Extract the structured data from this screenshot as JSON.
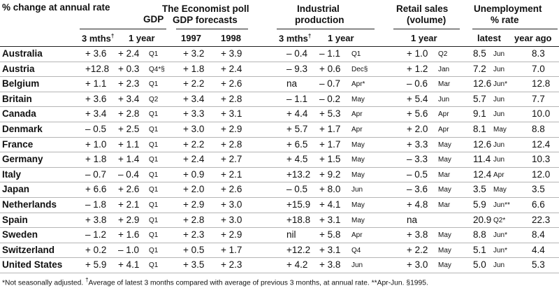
{
  "table_title": "% change at annual rate",
  "groups": {
    "gdp": "GDP",
    "poll_line1": "The Economist poll",
    "poll_line2": "GDP forecasts",
    "ip_line1": "Industrial",
    "ip_line2": "production",
    "retail_line1": "Retail sales",
    "retail_line2": "(volume)",
    "unemp_line1": "Unemployment",
    "unemp_line2": "% rate"
  },
  "subheaders": {
    "gdp_3m": "3 mths",
    "gdp_3m_mark": "†",
    "gdp_1y": "1 year",
    "poll_1997": "1997",
    "poll_1998": "1998",
    "ip_3m": "3 mths",
    "ip_3m_mark": "†",
    "ip_1y": "1 year",
    "retail_1y": "1 year",
    "unemp_latest": "latest",
    "unemp_yearago": "year ago"
  },
  "rows": [
    {
      "country": "Australia",
      "gdp3": "+ 3.6",
      "gdp1": "+ 2.4",
      "gdpd": "Q1",
      "f97": "+ 3.2",
      "f98": "+ 3.9",
      "ip3": "– 0.4",
      "ip1": "– 1.1",
      "ipd": "Q1",
      "rs": "+ 1.0",
      "rsd": "Q2",
      "ul": "8.5",
      "uld": "Jun",
      "uy": "8.3"
    },
    {
      "country": "Austria",
      "gdp3": "+12.8",
      "gdp1": "+ 0.3",
      "gdpd": "Q4*§",
      "f97": "+ 1.8",
      "f98": "+ 2.4",
      "ip3": "– 9.3",
      "ip1": "+ 0.6",
      "ipd": "Dec§",
      "rs": "+ 1.2",
      "rsd": "Jan",
      "ul": "7.2",
      "uld": "Jun",
      "uy": "7.0"
    },
    {
      "country": "Belgium",
      "gdp3": "+ 1.1",
      "gdp1": "+ 2.3",
      "gdpd": "Q1",
      "f97": "+ 2.2",
      "f98": "+ 2.6",
      "ip3": "na",
      "ip1": "– 0.7",
      "ipd": "Apr*",
      "rs": "– 0.6",
      "rsd": "Mar",
      "ul": "12.6",
      "uld": "Jun*",
      "uy": "12.8"
    },
    {
      "country": "Britain",
      "gdp3": "+ 3.6",
      "gdp1": "+ 3.4",
      "gdpd": "Q2",
      "f97": "+ 3.4",
      "f98": "+ 2.8",
      "ip3": "– 1.1",
      "ip1": "– 0.2",
      "ipd": "May",
      "rs": "+ 5.4",
      "rsd": "Jun",
      "ul": "5.7",
      "uld": "Jun",
      "uy": "7.7"
    },
    {
      "country": "Canada",
      "gdp3": "+ 3.4",
      "gdp1": "+ 2.8",
      "gdpd": "Q1",
      "f97": "+ 3.3",
      "f98": "+ 3.1",
      "ip3": "+ 4.4",
      "ip1": "+ 5.3",
      "ipd": "Apr",
      "rs": "+ 5.6",
      "rsd": "Apr",
      "ul": "9.1",
      "uld": "Jun",
      "uy": "10.0"
    },
    {
      "country": "Denmark",
      "gdp3": "– 0.5",
      "gdp1": "+ 2.5",
      "gdpd": "Q1",
      "f97": "+ 3.0",
      "f98": "+ 2.9",
      "ip3": "+ 5.7",
      "ip1": "+ 1.7",
      "ipd": "Apr",
      "rs": "+ 2.0",
      "rsd": "Apr",
      "ul": "8.1",
      "uld": "May",
      "uy": "8.8"
    },
    {
      "country": "France",
      "gdp3": "+ 1.0",
      "gdp1": "+ 1.1",
      "gdpd": "Q1",
      "f97": "+ 2.2",
      "f98": "+ 2.8",
      "ip3": "+ 6.5",
      "ip1": "+ 1.7",
      "ipd": "May",
      "rs": "+ 3.3",
      "rsd": "May",
      "ul": "12.6",
      "uld": "Jun",
      "uy": "12.4"
    },
    {
      "country": "Germany",
      "gdp3": "+ 1.8",
      "gdp1": "+ 1.4",
      "gdpd": "Q1",
      "f97": "+ 2.4",
      "f98": "+ 2.7",
      "ip3": "+ 4.5",
      "ip1": "+ 1.5",
      "ipd": "May",
      "rs": "– 3.3",
      "rsd": "May",
      "ul": "11.4",
      "uld": "Jun",
      "uy": "10.3"
    },
    {
      "country": "Italy",
      "gdp3": "– 0.7",
      "gdp1": "– 0.4",
      "gdpd": "Q1",
      "f97": "+ 0.9",
      "f98": "+ 2.1",
      "ip3": "+13.2",
      "ip1": "+ 9.2",
      "ipd": "May",
      "rs": "– 0.5",
      "rsd": "Mar",
      "ul": "12.4",
      "uld": "Apr",
      "uy": "12.0"
    },
    {
      "country": "Japan",
      "gdp3": "+ 6.6",
      "gdp1": "+ 2.6",
      "gdpd": "Q1",
      "f97": "+ 2.0",
      "f98": "+ 2.6",
      "ip3": "– 0.5",
      "ip1": "+ 8.0",
      "ipd": "Jun",
      "rs": "– 3.6",
      "rsd": "May",
      "ul": "3.5",
      "uld": "May",
      "uy": "3.5"
    },
    {
      "country": "Netherlands",
      "gdp3": "– 1.8",
      "gdp1": "+ 2.1",
      "gdpd": "Q1",
      "f97": "+ 2.9",
      "f98": "+ 3.0",
      "ip3": "+15.9",
      "ip1": "+ 4.1",
      "ipd": "May",
      "rs": "+ 4.8",
      "rsd": "Mar",
      "ul": "5.9",
      "uld": "Jun**",
      "uy": "6.6"
    },
    {
      "country": "Spain",
      "gdp3": "+ 3.8",
      "gdp1": "+ 2.9",
      "gdpd": "Q1",
      "f97": "+ 2.8",
      "f98": "+ 3.0",
      "ip3": "+18.8",
      "ip1": "+ 3.1",
      "ipd": "May",
      "rs": "na",
      "rsd": "",
      "ul": "20.9",
      "uld": "Q2*",
      "uy": "22.3"
    },
    {
      "country": "Sweden",
      "gdp3": "– 1.2",
      "gdp1": "+ 1.6",
      "gdpd": "Q1",
      "f97": "+ 2.3",
      "f98": "+ 2.9",
      "ip3": "nil",
      "ip1": "+ 5.8",
      "ipd": "Apr",
      "rs": "+ 3.8",
      "rsd": "May",
      "ul": "8.8",
      "uld": "Jun*",
      "uy": "8.4"
    },
    {
      "country": "Switzerland",
      "gdp3": "+ 0.2",
      "gdp1": "– 1.0",
      "gdpd": "Q1",
      "f97": "+ 0.5",
      "f98": "+ 1.7",
      "ip3": "+12.2",
      "ip1": "+ 3.1",
      "ipd": "Q4",
      "rs": "+ 2.2",
      "rsd": "May",
      "ul": "5.1",
      "uld": "Jun*",
      "uy": "4.4"
    },
    {
      "country": "United States",
      "gdp3": "+ 5.9",
      "gdp1": "+ 4.1",
      "gdpd": "Q1",
      "f97": "+ 3.5",
      "f98": "+ 2.3",
      "ip3": "+ 4.2",
      "ip1": "+ 3.8",
      "ipd": "Jun",
      "rs": "+ 3.0",
      "rsd": "May",
      "ul": "5.0",
      "uld": "Jun",
      "uy": "5.3"
    }
  ],
  "footnote": {
    "part1": "*Not seasonally adjusted. ",
    "dagger": "†",
    "part2": "Average of latest 3 months compared with average of previous 3 months, at annual rate. **Apr-Jun. §1995."
  }
}
